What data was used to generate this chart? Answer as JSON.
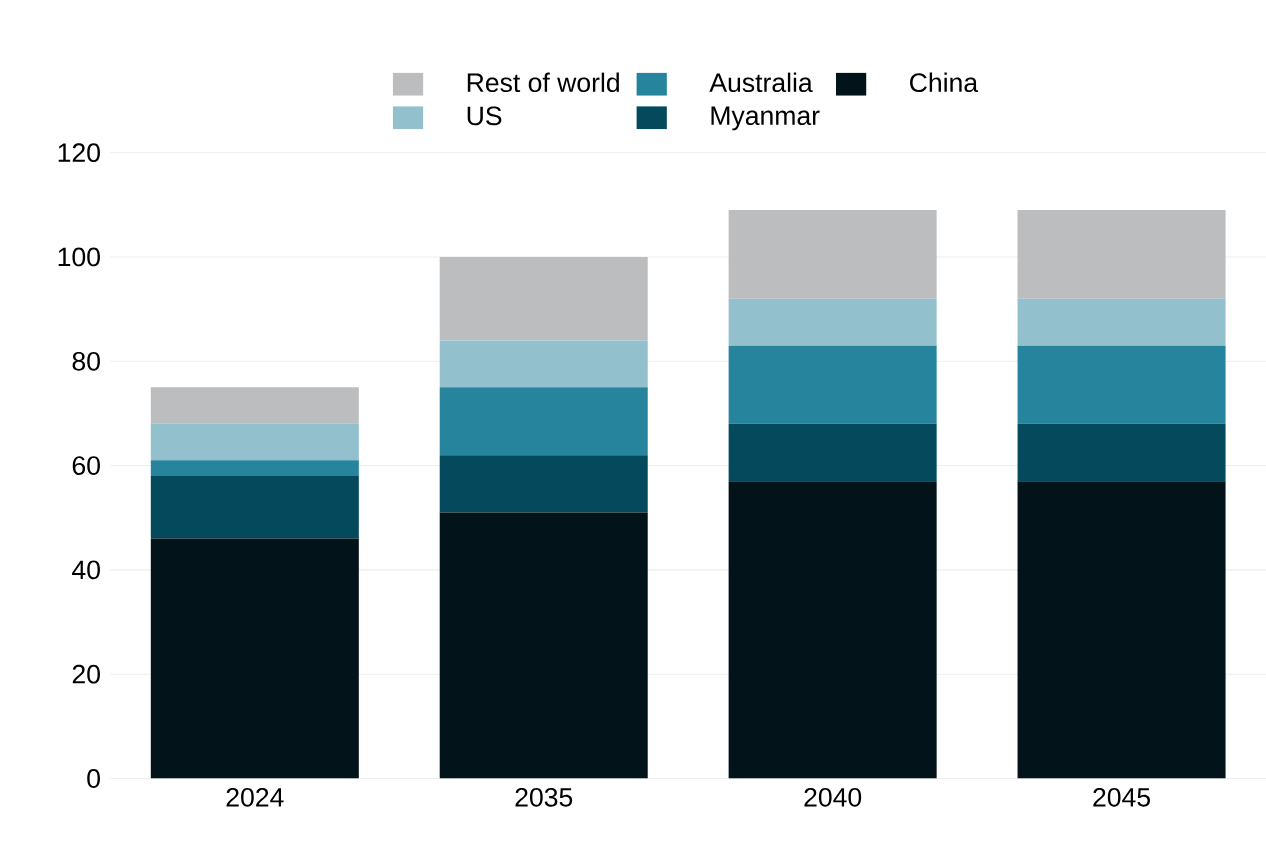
{
  "chart_data": {
    "type": "bar",
    "stacked": true,
    "categories": [
      "2024",
      "2035",
      "2040",
      "2045"
    ],
    "series": [
      {
        "name": "China",
        "color": "#02131a",
        "values": [
          46,
          51,
          57,
          57
        ]
      },
      {
        "name": "Myanmar",
        "color": "#044a5c",
        "values": [
          12,
          11,
          11,
          11
        ]
      },
      {
        "name": "Australia",
        "color": "#26849c",
        "values": [
          3,
          13,
          15,
          15
        ]
      },
      {
        "name": "US",
        "color": "#92c0cd",
        "values": [
          7,
          9,
          9,
          9
        ]
      },
      {
        "name": "Rest of world",
        "color": "#bcbdbf",
        "values": [
          7,
          16,
          17,
          17
        ]
      }
    ],
    "ylim": [
      0,
      120
    ],
    "yticks": [
      0,
      20,
      40,
      60,
      80,
      100,
      120
    ],
    "grid": "y",
    "legend": "top"
  }
}
